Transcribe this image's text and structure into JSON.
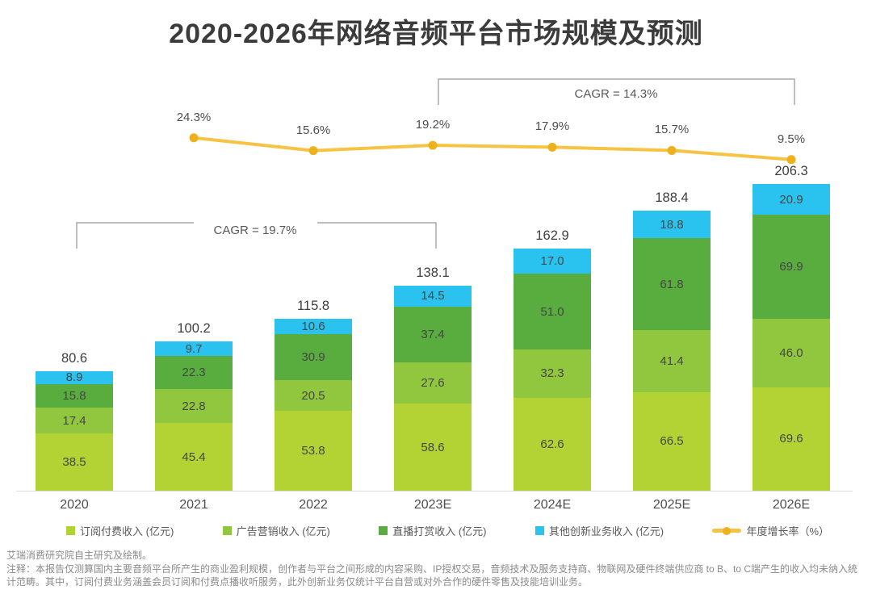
{
  "page": {
    "title": "2020-2026年网络音频平台市场规模及预测",
    "source_note": "艾瑞消费研究院自主研究及绘制。",
    "footnote": "注释：本报告仅测算国内主要音频平台所产生的商业盈利规模，创作者与平台之间形成的内容采购、IP授权交易，音频技术及服务支持商、物联网及硬件终端供应商 to B、to C端产生的收入均未纳入统计范畴。其中，订阅付费业务涵盖会员订阅和付费点播收听服务，此外创新业务仅统计平台自营或对外合作的硬件零售及技能培训业务。"
  },
  "chart_data": {
    "type": "bar",
    "subtype": "stacked-bar-with-growth-line",
    "title": "2020-2026年网络音频平台市场规模及预测",
    "categories": [
      "2020",
      "2021",
      "2022",
      "2023E",
      "2024E",
      "2025E",
      "2026E"
    ],
    "series": [
      {
        "name": "订阅付费收入 (亿元)",
        "color": "#b3d335",
        "values": [
          38.5,
          45.4,
          53.8,
          58.6,
          62.6,
          66.5,
          69.6
        ]
      },
      {
        "name": "广告营销收入 (亿元)",
        "color": "#90c73e",
        "values": [
          17.4,
          22.8,
          20.5,
          27.6,
          32.3,
          41.4,
          46.0
        ]
      },
      {
        "name": "直播打赏收入 (亿元)",
        "color": "#58ad3e",
        "values": [
          15.8,
          22.3,
          30.9,
          37.4,
          51.0,
          61.8,
          69.9
        ]
      },
      {
        "name": "其他创新业务收入 (亿元)",
        "color": "#2ac2ee",
        "values": [
          8.9,
          9.7,
          10.6,
          14.5,
          17.0,
          18.8,
          20.9
        ]
      }
    ],
    "totals": [
      80.6,
      100.2,
      115.8,
      138.1,
      162.9,
      188.4,
      206.3
    ],
    "line": {
      "name": "年度增长率（%）",
      "color": "#f6c342",
      "dot_color": "#eeb11d",
      "categories": [
        "2021",
        "2022",
        "2023E",
        "2024E",
        "2025E",
        "2026E"
      ],
      "values": [
        24.3,
        15.6,
        19.2,
        17.9,
        15.7,
        9.5
      ]
    },
    "annotations": [
      {
        "label": "CAGR = 19.7%",
        "from": "2020",
        "to": "2023E"
      },
      {
        "label": "CAGR = 14.3%",
        "from": "2023E",
        "to": "2026E"
      }
    ],
    "ylim": [
      0,
      206.3
    ],
    "grid": false,
    "legend_position": "bottom"
  }
}
